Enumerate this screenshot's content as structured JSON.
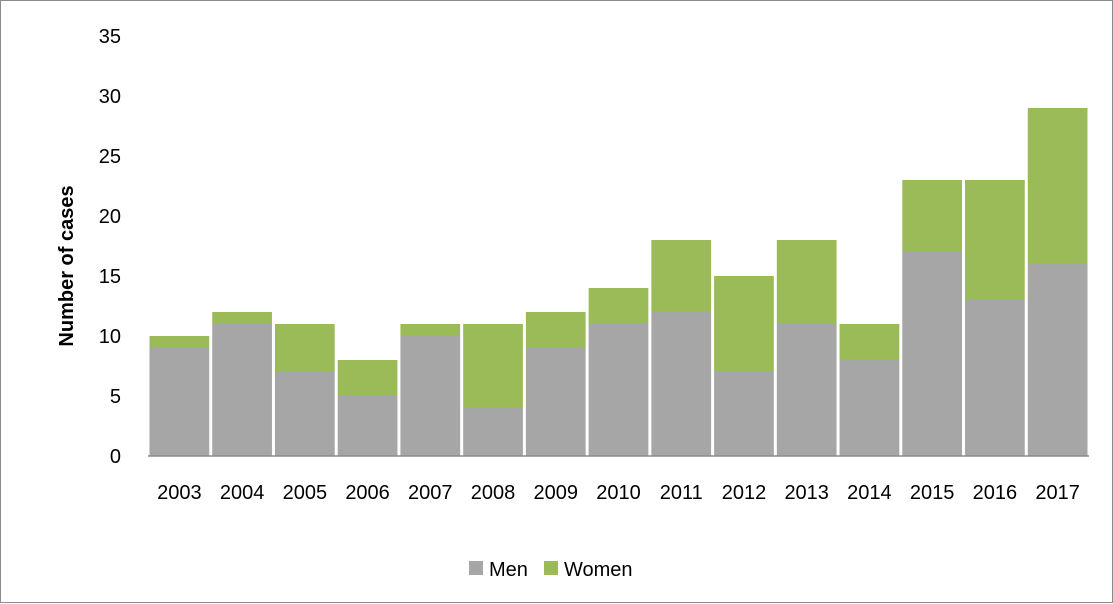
{
  "chart_data": {
    "type": "bar",
    "stacked": true,
    "categories": [
      "2003",
      "2004",
      "2005",
      "2006",
      "2007",
      "2008",
      "2009",
      "2010",
      "2011",
      "2012",
      "2013",
      "2014",
      "2015",
      "2016",
      "2017"
    ],
    "series": [
      {
        "name": "Men",
        "color": "#a6a6a6",
        "values": [
          9,
          11,
          7,
          5,
          10,
          4,
          9,
          11,
          12,
          7,
          11,
          8,
          17,
          13,
          16
        ]
      },
      {
        "name": "Women",
        "color": "#9bbb59",
        "values": [
          1,
          1,
          4,
          3,
          1,
          7,
          3,
          3,
          6,
          8,
          7,
          3,
          6,
          10,
          13
        ]
      }
    ],
    "title": "",
    "xlabel": "",
    "ylabel": "Number of cases",
    "ylim": [
      0,
      35
    ],
    "yticks": [
      "0",
      "5",
      "10",
      "15",
      "20",
      "25",
      "30",
      "35"
    ],
    "ytick_values": [
      0,
      5,
      10,
      15,
      20,
      25,
      30,
      35
    ],
    "grid": false,
    "legend_position": "bottom"
  }
}
